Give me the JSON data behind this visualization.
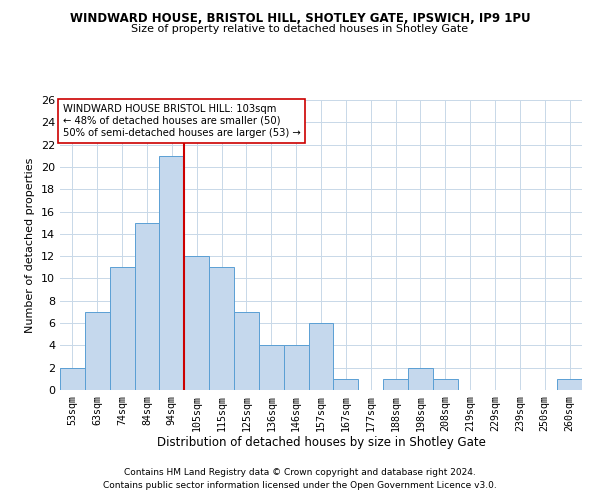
{
  "title": "WINDWARD HOUSE, BRISTOL HILL, SHOTLEY GATE, IPSWICH, IP9 1PU",
  "subtitle": "Size of property relative to detached houses in Shotley Gate",
  "xlabel": "Distribution of detached houses by size in Shotley Gate",
  "ylabel": "Number of detached properties",
  "bins": [
    "53sqm",
    "63sqm",
    "74sqm",
    "84sqm",
    "94sqm",
    "105sqm",
    "115sqm",
    "125sqm",
    "136sqm",
    "146sqm",
    "157sqm",
    "167sqm",
    "177sqm",
    "188sqm",
    "198sqm",
    "208sqm",
    "219sqm",
    "229sqm",
    "239sqm",
    "250sqm",
    "260sqm"
  ],
  "values": [
    2,
    7,
    11,
    15,
    21,
    12,
    11,
    7,
    4,
    4,
    6,
    1,
    0,
    1,
    2,
    1,
    0,
    0,
    0,
    0,
    1
  ],
  "bar_color": "#c5d8ed",
  "bar_edge_color": "#5a9fd4",
  "vline_x_index": 4.5,
  "vline_color": "#cc0000",
  "ylim": [
    0,
    26
  ],
  "yticks": [
    0,
    2,
    4,
    6,
    8,
    10,
    12,
    14,
    16,
    18,
    20,
    22,
    24,
    26
  ],
  "annotation_title": "WINDWARD HOUSE BRISTOL HILL: 103sqm",
  "annotation_line1": "← 48% of detached houses are smaller (50)",
  "annotation_line2": "50% of semi-detached houses are larger (53) →",
  "annotation_box_color": "#ffffff",
  "annotation_box_edge": "#cc0000",
  "footer1": "Contains HM Land Registry data © Crown copyright and database right 2024.",
  "footer2": "Contains public sector information licensed under the Open Government Licence v3.0.",
  "bg_color": "#ffffff",
  "grid_color": "#c8d8e8"
}
